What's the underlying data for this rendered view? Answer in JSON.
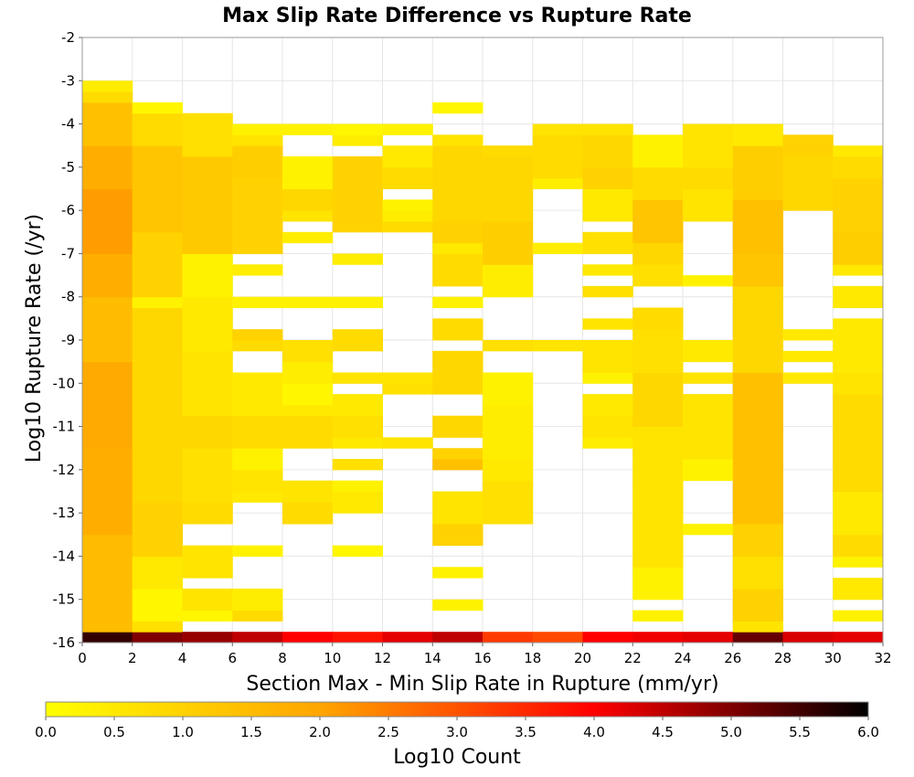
{
  "chart_data": {
    "type": "heatmap",
    "title": "Max Slip Rate Difference vs Rupture Rate",
    "xlabel": "Section Max - Min Slip Rate in Rupture (mm/yr)",
    "ylabel": "Log10 Rupture Rate (/yr)",
    "xlim": [
      0,
      32
    ],
    "ylim": [
      -16,
      -2
    ],
    "x_bin_width": 2,
    "y_bin_width": 0.25,
    "xticks": [
      "0",
      "2",
      "4",
      "6",
      "8",
      "10",
      "12",
      "14",
      "16",
      "18",
      "20",
      "22",
      "24",
      "26",
      "28",
      "30",
      "32"
    ],
    "yticks": [
      "-2",
      "-3",
      "-4",
      "-5",
      "-6",
      "-7",
      "-8",
      "-9",
      "-10",
      "-11",
      "-12",
      "-13",
      "-14",
      "-15",
      "-16"
    ],
    "grid": true,
    "colorbar": {
      "label": "Log10 Count",
      "range": [
        0.0,
        6.0
      ],
      "ticks": [
        "0.0",
        "0.5",
        "1.0",
        "1.5",
        "2.0",
        "2.5",
        "3.0",
        "3.5",
        "4.0",
        "4.5",
        "5.0",
        "5.5",
        "6.0"
      ],
      "colors": [
        "#ffff00",
        "#ffa500",
        "#ff0000",
        "#000000"
      ]
    },
    "columns": [
      {
        "x": [
          0,
          2
        ],
        "segments": [
          [
            -16,
            -15.75,
            5.6
          ],
          [
            -15.75,
            -13.5,
            1.5
          ],
          [
            -13.5,
            -11.5,
            1.8
          ],
          [
            -11.5,
            -9.5,
            1.9
          ],
          [
            -9.5,
            -8,
            1.5
          ],
          [
            -8,
            -7,
            1.8
          ],
          [
            -7,
            -5.5,
            2.1
          ],
          [
            -5.5,
            -4.5,
            1.8
          ],
          [
            -4.5,
            -3.5,
            1.4
          ],
          [
            -3.5,
            -3.25,
            0.8
          ],
          [
            -3.25,
            -3,
            0.4
          ]
        ]
      },
      {
        "x": [
          2,
          4
        ],
        "segments": [
          [
            -16,
            -15.75,
            5.0
          ],
          [
            -15.75,
            -15.5,
            0.7
          ],
          [
            -15.5,
            -14.75,
            0.2
          ],
          [
            -14.75,
            -14,
            0.5
          ],
          [
            -14,
            -12.75,
            1.0
          ],
          [
            -12.75,
            -11.75,
            0.9
          ],
          [
            -11.75,
            -8.25,
            0.9
          ],
          [
            -8.25,
            -8,
            0.3
          ],
          [
            -8,
            -6.5,
            1.0
          ],
          [
            -6.5,
            -4.5,
            1.3
          ],
          [
            -4.5,
            -3.75,
            0.8
          ],
          [
            -3.75,
            -3.5,
            0.2
          ]
        ]
      },
      {
        "x": [
          4,
          6
        ],
        "segments": [
          [
            -16,
            -15.75,
            4.8
          ],
          [
            -15.5,
            -15.25,
            0.2
          ],
          [
            -15.25,
            -14.75,
            0.6
          ],
          [
            -14.5,
            -13.75,
            0.6
          ],
          [
            -13.25,
            -12.75,
            0.8
          ],
          [
            -12.75,
            -11.5,
            0.7
          ],
          [
            -11.5,
            -10.75,
            0.9
          ],
          [
            -10.75,
            -9.25,
            0.6
          ],
          [
            -9.25,
            -8,
            0.5
          ],
          [
            -8,
            -7,
            0.3
          ],
          [
            -7,
            -6.25,
            1.2
          ],
          [
            -6.25,
            -4.75,
            1.2
          ],
          [
            -4.75,
            -3.75,
            0.7
          ]
        ]
      },
      {
        "x": [
          6,
          8
        ],
        "segments": [
          [
            -16,
            -15.75,
            4.5
          ],
          [
            -15.5,
            -15.25,
            0.8
          ],
          [
            -15.25,
            -14.75,
            0.4
          ],
          [
            -14,
            -13.75,
            0.3
          ],
          [
            -12.75,
            -12.5,
            0.5
          ],
          [
            -12.5,
            -12,
            0.6
          ],
          [
            -12,
            -11.5,
            0.3
          ],
          [
            -11.5,
            -10.75,
            0.8
          ],
          [
            -10.75,
            -10.5,
            0.5
          ],
          [
            -10.5,
            -9.75,
            0.5
          ],
          [
            -9.25,
            -9,
            0.8
          ],
          [
            -9,
            -8.75,
            1.0
          ],
          [
            -8.25,
            -8,
            0.3
          ],
          [
            -7.5,
            -7.25,
            0.4
          ],
          [
            -7,
            -6.25,
            1.0
          ],
          [
            -6.25,
            -5.25,
            1.0
          ],
          [
            -5.25,
            -4.5,
            1.1
          ],
          [
            -4.5,
            -4.25,
            0.6
          ],
          [
            -4.25,
            -4,
            0.3
          ]
        ]
      },
      {
        "x": [
          8,
          10
        ],
        "segments": [
          [
            -16,
            -15.75,
            4.0
          ],
          [
            -13.25,
            -12.75,
            0.8
          ],
          [
            -12.75,
            -12.25,
            0.6
          ],
          [
            -11.5,
            -10.75,
            0.8
          ],
          [
            -10.75,
            -10.5,
            0.5
          ],
          [
            -10.5,
            -10,
            0.2
          ],
          [
            -10,
            -9.5,
            0.4
          ],
          [
            -9.5,
            -9,
            0.7
          ],
          [
            -8.25,
            -8,
            0.3
          ],
          [
            -6.75,
            -6.5,
            0.4
          ],
          [
            -6.25,
            -6,
            0.6
          ],
          [
            -6,
            -5.5,
            0.9
          ],
          [
            -5.5,
            -4.75,
            0.3
          ],
          [
            -4.25,
            -4,
            0.3
          ]
        ]
      },
      {
        "x": [
          10,
          12
        ],
        "segments": [
          [
            -16,
            -15.75,
            3.8
          ],
          [
            -14,
            -13.75,
            0.2
          ],
          [
            -13,
            -12.5,
            0.5
          ],
          [
            -12.5,
            -12.25,
            0.3
          ],
          [
            -12,
            -11.75,
            0.7
          ],
          [
            -11.5,
            -11.25,
            0.5
          ],
          [
            -11.25,
            -10.75,
            0.7
          ],
          [
            -10.75,
            -10.25,
            0.5
          ],
          [
            -10,
            -9.75,
            0.6
          ],
          [
            -9.25,
            -8.75,
            0.8
          ],
          [
            -8.25,
            -8,
            0.3
          ],
          [
            -7.25,
            -7,
            0.4
          ],
          [
            -6.5,
            -4.75,
            1.0
          ],
          [
            -4.5,
            -4.25,
            0.4
          ],
          [
            -4.25,
            -4,
            0.2
          ]
        ]
      },
      {
        "x": [
          12,
          14
        ],
        "segments": [
          [
            -16,
            -15.75,
            4.2
          ],
          [
            -11.5,
            -11.25,
            0.6
          ],
          [
            -10.25,
            -10,
            0.7
          ],
          [
            -10,
            -9.75,
            0.6
          ],
          [
            -6.5,
            -6.25,
            0.8
          ],
          [
            -6.25,
            -6,
            0.4
          ],
          [
            -6,
            -5.75,
            0.3
          ],
          [
            -5.5,
            -5,
            0.8
          ],
          [
            -5,
            -4.5,
            0.5
          ],
          [
            -4.25,
            -4,
            0.3
          ]
        ]
      },
      {
        "x": [
          14,
          16
        ],
        "segments": [
          [
            -16,
            -15.75,
            4.5
          ],
          [
            -15.25,
            -15,
            0.3
          ],
          [
            -14.5,
            -14.25,
            0.3
          ],
          [
            -13.75,
            -13.25,
            1.0
          ],
          [
            -13.25,
            -12.5,
            0.6
          ],
          [
            -12,
            -11.75,
            1.4
          ],
          [
            -11.75,
            -11.5,
            1.0
          ],
          [
            -11.25,
            -10.75,
            0.9
          ],
          [
            -10.25,
            -9.25,
            0.9
          ],
          [
            -9,
            -8.5,
            0.8
          ],
          [
            -8.25,
            -8,
            0.3
          ],
          [
            -7.75,
            -7,
            0.8
          ],
          [
            -7,
            -6.75,
            0.5
          ],
          [
            -6.75,
            -6.25,
            1.0
          ],
          [
            -6.25,
            -5.25,
            0.9
          ],
          [
            -5.25,
            -4.5,
            0.9
          ],
          [
            -4.5,
            -4.25,
            0.6
          ],
          [
            -3.75,
            -3.5,
            0.2
          ]
        ]
      },
      {
        "x": [
          16,
          18
        ],
        "segments": [
          [
            -16,
            -15.75,
            3.3
          ],
          [
            -13.25,
            -12.25,
            0.7
          ],
          [
            -12.25,
            -11.75,
            0.5
          ],
          [
            -11.75,
            -11.25,
            0.4
          ],
          [
            -11.25,
            -10.5,
            0.4
          ],
          [
            -10.5,
            -9.75,
            0.3
          ],
          [
            -9.25,
            -9,
            0.7
          ],
          [
            -8,
            -7.25,
            0.4
          ],
          [
            -7.25,
            -6.25,
            1.1
          ],
          [
            -6.25,
            -4.75,
            0.9
          ],
          [
            -4.75,
            -4.5,
            0.8
          ]
        ]
      },
      {
        "x": [
          18,
          20
        ],
        "segments": [
          [
            -16,
            -15.75,
            3.1
          ],
          [
            -9.25,
            -9,
            0.6
          ],
          [
            -7,
            -6.75,
            0.4
          ],
          [
            -5.5,
            -5.25,
            0.4
          ],
          [
            -5.25,
            -4.25,
            0.8
          ],
          [
            -4.25,
            -4,
            0.6
          ]
        ]
      },
      {
        "x": [
          20,
          22
        ],
        "segments": [
          [
            -16,
            -15.75,
            4.0
          ],
          [
            -11.5,
            -11.25,
            0.4
          ],
          [
            -11.25,
            -10.75,
            0.6
          ],
          [
            -10.75,
            -10.25,
            0.5
          ],
          [
            -10,
            -9.75,
            0.3
          ],
          [
            -9.75,
            -9,
            0.6
          ],
          [
            -8.75,
            -8.5,
            0.6
          ],
          [
            -8,
            -7.75,
            0.7
          ],
          [
            -7.5,
            -7.25,
            0.5
          ],
          [
            -7,
            -6.5,
            0.7
          ],
          [
            -6.25,
            -5.5,
            0.5
          ],
          [
            -5.5,
            -5,
            1.0
          ],
          [
            -5,
            -4.25,
            0.9
          ],
          [
            -4.25,
            -4,
            0.6
          ]
        ]
      },
      {
        "x": [
          22,
          24
        ],
        "segments": [
          [
            -16,
            -15.75,
            4.1
          ],
          [
            -15.5,
            -15.25,
            0.3
          ],
          [
            -15,
            -14.25,
            0.3
          ],
          [
            -14.25,
            -12.25,
            0.6
          ],
          [
            -12.25,
            -11,
            0.6
          ],
          [
            -11,
            -9.75,
            0.9
          ],
          [
            -9.75,
            -8.75,
            0.7
          ],
          [
            -8.75,
            -8.25,
            0.8
          ],
          [
            -7.75,
            -7.25,
            0.7
          ],
          [
            -7.25,
            -6.75,
            0.9
          ],
          [
            -6.75,
            -5.75,
            1.3
          ],
          [
            -5.75,
            -5,
            0.8
          ],
          [
            -5,
            -4.25,
            0.3
          ]
        ]
      },
      {
        "x": [
          24,
          26
        ],
        "segments": [
          [
            -16,
            -15.75,
            4.2
          ],
          [
            -13.5,
            -13.25,
            0.3
          ],
          [
            -12.25,
            -11.75,
            0.3
          ],
          [
            -11.75,
            -11.25,
            0.6
          ],
          [
            -11.25,
            -10.75,
            0.6
          ],
          [
            -10.75,
            -10.25,
            0.6
          ],
          [
            -10,
            -9.75,
            0.6
          ],
          [
            -9.5,
            -9,
            0.5
          ],
          [
            -7.75,
            -7.5,
            0.3
          ],
          [
            -6.25,
            -5.5,
            0.6
          ],
          [
            -5.5,
            -5,
            0.8
          ],
          [
            -5,
            -4.5,
            0.6
          ],
          [
            -4.5,
            -4,
            0.6
          ]
        ]
      },
      {
        "x": [
          26,
          28
        ],
        "segments": [
          [
            -16,
            -15.75,
            5.2
          ],
          [
            -15.75,
            -15.5,
            0.6
          ],
          [
            -15.5,
            -14.75,
            1.0
          ],
          [
            -14.75,
            -14,
            0.7
          ],
          [
            -14,
            -13.25,
            1.0
          ],
          [
            -13.25,
            -9.75,
            1.4
          ],
          [
            -9.75,
            -8.75,
            0.9
          ],
          [
            -8.75,
            -7.75,
            0.9
          ],
          [
            -7.75,
            -7,
            1.3
          ],
          [
            -7,
            -5.75,
            1.4
          ],
          [
            -5.75,
            -4.5,
            1.1
          ],
          [
            -4.5,
            -4,
            0.5
          ]
        ]
      },
      {
        "x": [
          28,
          30
        ],
        "segments": [
          [
            -16,
            -15.75,
            4.3
          ],
          [
            -10,
            -9.75,
            0.5
          ],
          [
            -9.5,
            -9.25,
            0.5
          ],
          [
            -9,
            -8.75,
            0.5
          ],
          [
            -6,
            -5.5,
            0.9
          ],
          [
            -5.5,
            -4.75,
            0.9
          ],
          [
            -4.75,
            -4.25,
            1.0
          ]
        ]
      },
      {
        "x": [
          30,
          32
        ],
        "segments": [
          [
            -16,
            -15.75,
            4.2
          ],
          [
            -15.5,
            -15.25,
            0.3
          ],
          [
            -15,
            -14.5,
            0.5
          ],
          [
            -14.25,
            -14,
            0.3
          ],
          [
            -14,
            -13.5,
            0.8
          ],
          [
            -13.5,
            -12.5,
            0.5
          ],
          [
            -12.5,
            -11.75,
            0.8
          ],
          [
            -11.75,
            -10.25,
            0.8
          ],
          [
            -10.25,
            -9.75,
            0.6
          ],
          [
            -9.75,
            -8.5,
            0.5
          ],
          [
            -8.25,
            -7.75,
            0.5
          ],
          [
            -7.5,
            -7.25,
            0.5
          ],
          [
            -7.25,
            -6.5,
            1.1
          ],
          [
            -6.5,
            -5.25,
            1.0
          ],
          [
            -5.25,
            -4.75,
            0.8
          ],
          [
            -4.75,
            -4.5,
            0.5
          ]
        ]
      }
    ]
  }
}
